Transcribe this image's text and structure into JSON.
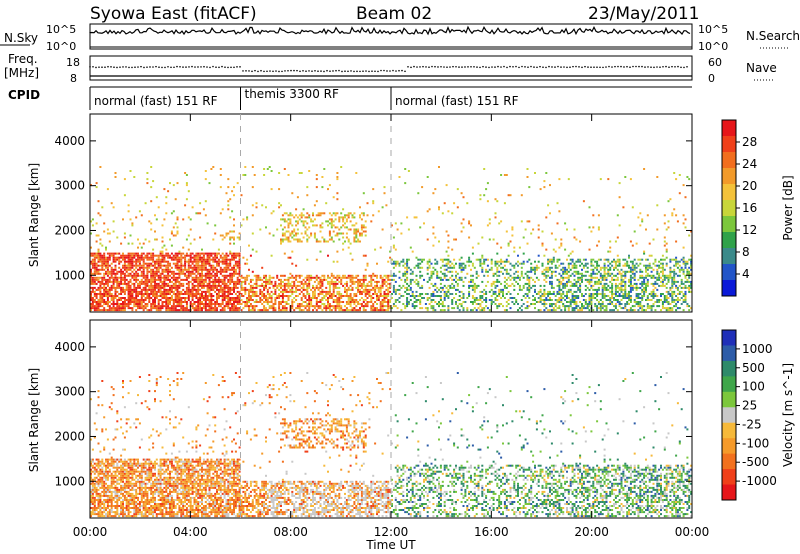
{
  "header": {
    "title": "Syowa East (fitACF)",
    "beam": "Beam 02",
    "date": "23/May/2011"
  },
  "nsky_panel": {
    "left_label": "N.Sky",
    "left_ticks": [
      "10^5",
      "10^0"
    ],
    "right_label": "N.Search",
    "right_ticks": [
      "10^5",
      "10^0"
    ]
  },
  "freq_panel": {
    "left_label_1": "Freq.",
    "left_label_2": "[MHz]",
    "left_ticks": [
      "18",
      "8"
    ],
    "right_label": "Nave",
    "right_ticks": [
      "60",
      "0"
    ]
  },
  "cpid": {
    "label": "CPID",
    "segments": [
      {
        "name": "normal (fast) 151 RF",
        "start": 0,
        "end": 6
      },
      {
        "name": "themis 3300 RF",
        "start": 6,
        "end": 12
      },
      {
        "name": "normal (fast) 151 RF",
        "start": 12,
        "end": 24
      }
    ]
  },
  "chart_data": [
    {
      "type": "heatmap",
      "ylabel": "Slant Range [km]",
      "xlabel": "Time UT",
      "xlim": [
        0,
        24
      ],
      "ylim": [
        180,
        4600
      ],
      "x_ticks": [
        "00:00",
        "04:00",
        "08:00",
        "12:00",
        "16:00",
        "20:00",
        "00:00"
      ],
      "y_ticks": [
        "1000",
        "2000",
        "3000",
        "4000"
      ],
      "colorbar": {
        "label": "Power [dB]",
        "ticks": [
          "28",
          "24",
          "20",
          "16",
          "12",
          "8",
          "4"
        ],
        "range": [
          0,
          30
        ],
        "colors": [
          "#0b1ad8",
          "#2255c8",
          "#3a8a8a",
          "#2fa24a",
          "#7cc73c",
          "#c8d63a",
          "#f4c23a",
          "#f29a2a",
          "#f26e1e",
          "#f0401a",
          "#e6161a"
        ]
      },
      "description_regions": [
        {
          "t0": 0,
          "t1": 6,
          "r0": 250,
          "r1": 1500,
          "value": 26
        },
        {
          "t0": 6,
          "t1": 12,
          "r0": 300,
          "r1": 1000,
          "value": 22
        },
        {
          "t0": 12,
          "t1": 24,
          "r0": 250,
          "r1": 1300,
          "value": 9
        }
      ]
    },
    {
      "type": "heatmap",
      "ylabel": "Slant Range [km]",
      "xlabel": "Time UT",
      "xlim": [
        0,
        24
      ],
      "ylim": [
        180,
        4600
      ],
      "x_ticks": [
        "00:00",
        "04:00",
        "08:00",
        "12:00",
        "16:00",
        "20:00",
        "00:00"
      ],
      "y_ticks": [
        "1000",
        "2000",
        "3000",
        "4000"
      ],
      "colorbar": {
        "label": "Velocity [m s^-1]",
        "ticks": [
          "1000",
          "500",
          "100",
          "25",
          "-25",
          "-100",
          "-500",
          "-1000"
        ],
        "range": [
          -1200,
          1200
        ],
        "colors": [
          "#e6161a",
          "#f0401a",
          "#f2711e",
          "#f59a2a",
          "#f6b93a",
          "#c8c8c8",
          "#7cc73c",
          "#3fa64a",
          "#2e8a6a",
          "#2d5ca8",
          "#1f2fb8"
        ]
      }
    }
  ]
}
